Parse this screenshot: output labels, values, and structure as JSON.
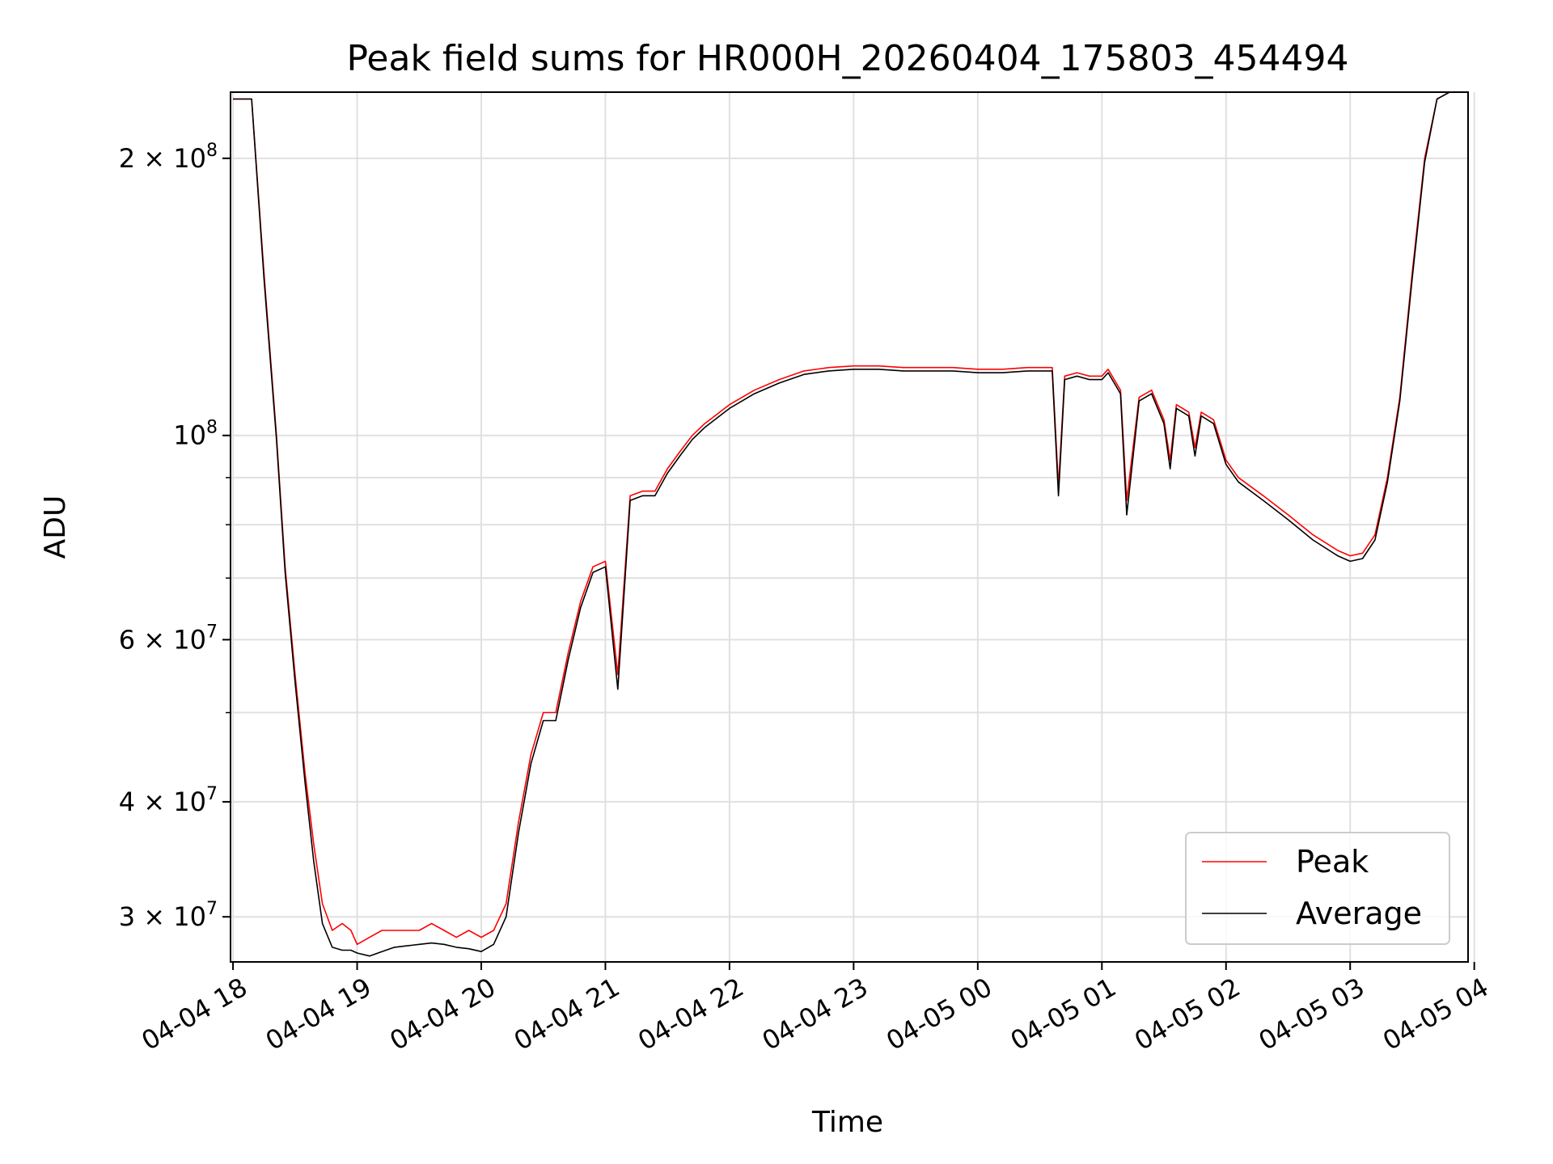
{
  "chart_data": {
    "type": "line",
    "title": "Peak field sums for HR000H_20260404_175803_454494",
    "xlabel": "Time",
    "ylabel": "ADU",
    "yscale": "log",
    "ylim": [
      26800000,
      236000000
    ],
    "xlim_hours": [
      -0.02,
      9.95
    ],
    "grid": true,
    "legend_position": "lower-right",
    "x_ticks": [
      {
        "hour": 0,
        "label": "04-04 18"
      },
      {
        "hour": 1,
        "label": "04-04 19"
      },
      {
        "hour": 2,
        "label": "04-04 20"
      },
      {
        "hour": 3,
        "label": "04-04 21"
      },
      {
        "hour": 4,
        "label": "04-04 22"
      },
      {
        "hour": 5,
        "label": "04-04 23"
      },
      {
        "hour": 6,
        "label": "04-05 00"
      },
      {
        "hour": 7,
        "label": "04-05 01"
      },
      {
        "hour": 8,
        "label": "04-05 02"
      },
      {
        "hour": 9,
        "label": "04-05 03"
      },
      {
        "hour": 10,
        "label": "04-05 04"
      }
    ],
    "y_ticks": [
      {
        "value": 30000000,
        "mant": "3",
        "exp": "7"
      },
      {
        "value": 40000000,
        "mant": "4",
        "exp": "7"
      },
      {
        "value": 60000000,
        "mant": "6",
        "exp": "7"
      },
      {
        "value": 100000000,
        "mant": "",
        "exp": "8"
      },
      {
        "value": 200000000,
        "mant": "2",
        "exp": "8"
      }
    ],
    "y_minor_ticks": [
      50000000,
      70000000,
      80000000,
      90000000
    ],
    "series": [
      {
        "name": "Peak",
        "color": "#ff0000",
        "x_hours": [
          0.0,
          0.15,
          0.25,
          0.35,
          0.42,
          0.5,
          0.58,
          0.65,
          0.72,
          0.8,
          0.88,
          0.95,
          1.0,
          1.1,
          1.2,
          1.3,
          1.4,
          1.5,
          1.6,
          1.7,
          1.8,
          1.9,
          2.0,
          2.1,
          2.2,
          2.3,
          2.4,
          2.5,
          2.6,
          2.7,
          2.8,
          2.9,
          3.0,
          3.1,
          3.2,
          3.3,
          3.4,
          3.42,
          3.5,
          3.6,
          3.7,
          3.8,
          4.0,
          4.2,
          4.4,
          4.6,
          4.8,
          5.0,
          5.2,
          5.4,
          5.6,
          5.8,
          6.0,
          6.2,
          6.4,
          6.6,
          6.65,
          6.7,
          6.8,
          6.9,
          7.0,
          7.05,
          7.1,
          7.15,
          7.2,
          7.3,
          7.4,
          7.5,
          7.55,
          7.6,
          7.7,
          7.75,
          7.8,
          7.9,
          8.0,
          8.1,
          8.3,
          8.5,
          8.7,
          8.9,
          9.0,
          9.1,
          9.2,
          9.3,
          9.4,
          9.5,
          9.6,
          9.7,
          9.8,
          9.85
        ],
        "values": [
          232000000,
          232000000,
          150000000,
          100000000,
          72000000,
          55000000,
          43000000,
          36000000,
          31000000,
          29000000,
          29500000,
          29000000,
          28000000,
          28500000,
          29000000,
          29000000,
          29000000,
          29000000,
          29500000,
          29000000,
          28500000,
          29000000,
          28500000,
          29000000,
          31000000,
          38000000,
          45000000,
          50000000,
          50000000,
          58000000,
          66000000,
          72000000,
          73000000,
          55000000,
          86000000,
          87000000,
          87000000,
          88000000,
          92000000,
          96000000,
          100000000,
          103000000,
          108000000,
          112000000,
          115000000,
          117500000,
          118500000,
          119000000,
          119000000,
          118500000,
          118500000,
          118500000,
          118000000,
          118000000,
          118500000,
          118500000,
          88000000,
          116000000,
          117000000,
          116000000,
          116000000,
          118000000,
          115000000,
          112000000,
          85000000,
          110000000,
          112000000,
          104000000,
          94000000,
          108000000,
          106000000,
          97000000,
          106000000,
          104000000,
          94000000,
          90000000,
          86000000,
          82000000,
          78000000,
          75000000,
          74000000,
          74500000,
          78000000,
          90000000,
          110000000,
          150000000,
          200000000,
          232000000,
          236000000,
          236000000
        ]
      },
      {
        "name": "Average",
        "color": "#000000",
        "x_hours": [
          0.0,
          0.15,
          0.25,
          0.35,
          0.42,
          0.5,
          0.58,
          0.65,
          0.72,
          0.8,
          0.88,
          0.95,
          1.0,
          1.1,
          1.2,
          1.3,
          1.4,
          1.5,
          1.6,
          1.7,
          1.8,
          1.9,
          2.0,
          2.1,
          2.2,
          2.3,
          2.4,
          2.5,
          2.6,
          2.7,
          2.8,
          2.9,
          3.0,
          3.1,
          3.2,
          3.3,
          3.4,
          3.42,
          3.5,
          3.6,
          3.7,
          3.8,
          4.0,
          4.2,
          4.4,
          4.6,
          4.8,
          5.0,
          5.2,
          5.4,
          5.6,
          5.8,
          6.0,
          6.2,
          6.4,
          6.6,
          6.65,
          6.7,
          6.8,
          6.9,
          7.0,
          7.05,
          7.1,
          7.15,
          7.2,
          7.3,
          7.4,
          7.5,
          7.55,
          7.6,
          7.7,
          7.75,
          7.8,
          7.9,
          8.0,
          8.1,
          8.3,
          8.5,
          8.7,
          8.9,
          9.0,
          9.1,
          9.2,
          9.3,
          9.4,
          9.5,
          9.6,
          9.7,
          9.8,
          9.85
        ],
        "values": [
          232000000,
          232000000,
          148000000,
          99000000,
          71000000,
          54000000,
          42000000,
          34500000,
          29500000,
          27800000,
          27600000,
          27600000,
          27400000,
          27200000,
          27500000,
          27800000,
          27900000,
          28000000,
          28100000,
          28000000,
          27800000,
          27700000,
          27500000,
          28000000,
          30000000,
          37000000,
          44000000,
          49000000,
          49000000,
          57000000,
          65000000,
          71000000,
          72000000,
          53000000,
          85000000,
          86000000,
          86000000,
          87000000,
          91000000,
          95000000,
          99000000,
          102000000,
          107000000,
          111000000,
          114000000,
          116500000,
          117500000,
          118000000,
          118000000,
          117500000,
          117500000,
          117500000,
          117000000,
          117000000,
          117500000,
          117500000,
          86000000,
          115000000,
          116000000,
          115000000,
          115000000,
          117000000,
          114000000,
          111000000,
          82000000,
          109000000,
          111000000,
          103000000,
          92000000,
          107000000,
          105000000,
          95000000,
          105000000,
          103000000,
          93000000,
          89000000,
          85000000,
          81000000,
          77000000,
          74000000,
          73000000,
          73500000,
          77000000,
          89000000,
          109000000,
          148000000,
          198000000,
          232000000,
          236000000,
          236000000
        ]
      }
    ]
  }
}
